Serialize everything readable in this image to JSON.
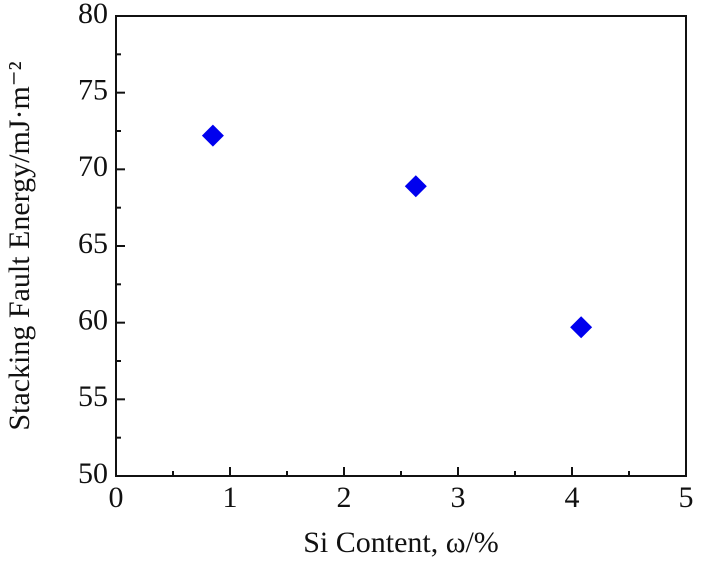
{
  "chart_data": {
    "type": "scatter",
    "x_label": "Si Content, ω/%",
    "y_label": "Stacking Fault Energy/mJ·m⁻²",
    "series": [
      {
        "color": "#0000ee",
        "marker": "diamond",
        "x": [
          0.85,
          2.63,
          4.08
        ],
        "values": [
          72.2,
          68.9,
          59.7
        ]
      }
    ],
    "xlim": [
      0,
      5
    ],
    "xticks": [
      0,
      1,
      2,
      3,
      4,
      5
    ],
    "xminorticks": [
      0.5,
      1.5,
      2.5,
      3.5,
      4.5
    ],
    "ylim": [
      50,
      80
    ],
    "yticks": [
      50,
      55,
      60,
      65,
      70,
      75,
      80
    ],
    "yminorticks": [
      52.5,
      57.5,
      62.5,
      67.5,
      72.5,
      77.5
    ],
    "grid": false
  }
}
